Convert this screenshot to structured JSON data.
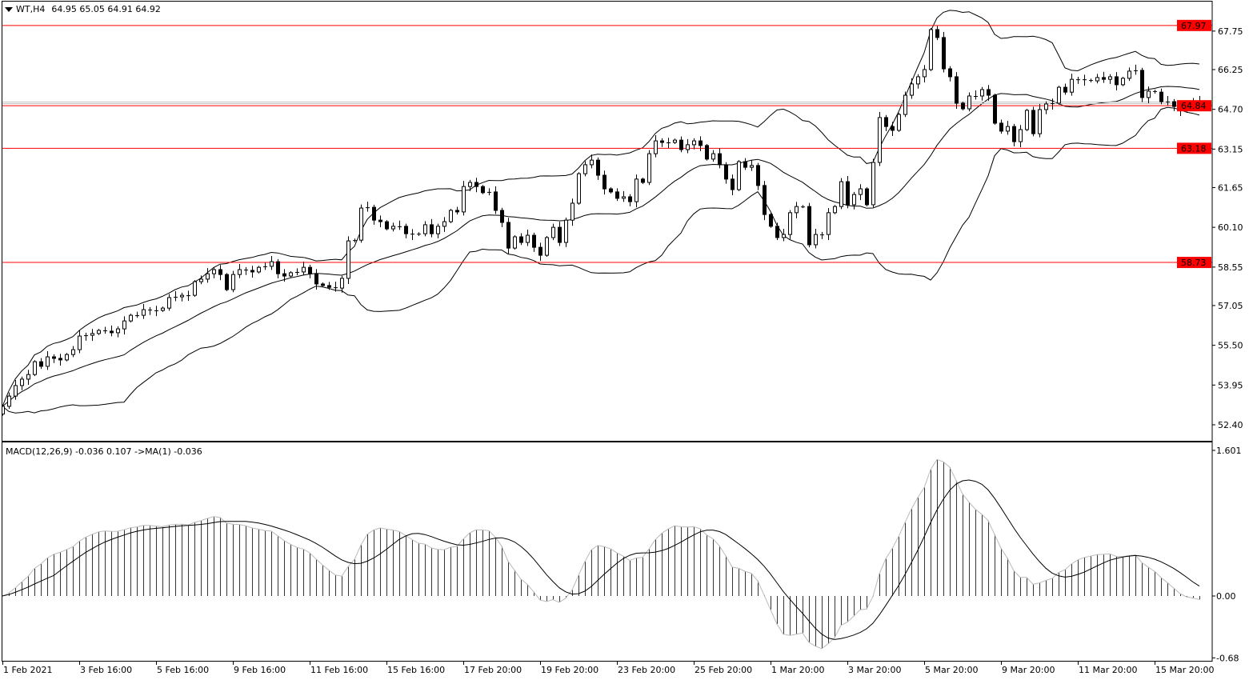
{
  "header": {
    "symbol": "WT,H4",
    "ohlc": "64.95 65.05 64.91 64.92"
  },
  "macd_header": {
    "label": "MACD(12,26,9) -0.036 0.107  ->MA(1) -0.036"
  },
  "colors": {
    "level_line": "#ff0000",
    "level_label_bg": "#ff0000",
    "bid_line": "#c0c0c0",
    "candle_up": "#ffffff",
    "candle_down": "#000000",
    "foreground": "#000000"
  },
  "chart_data": [
    {
      "type": "candlestick",
      "timeframe": "H4",
      "price_ticks": [
        "67.75",
        "66.25",
        "64.70",
        "63.15",
        "61.65",
        "60.10",
        "58.55",
        "57.05",
        "55.50",
        "53.95",
        "52.40"
      ],
      "ylim": [
        52.4,
        67.75
      ],
      "x_tick_labels": [
        "1 Feb 2021",
        "3 Feb 16:00",
        "5 Feb 16:00",
        "9 Feb 16:00",
        "11 Feb 16:00",
        "15 Feb 16:00",
        "17 Feb 20:00",
        "19 Feb 20:00",
        "23 Feb 20:00",
        "25 Feb 20:00",
        "1 Mar 20:00",
        "3 Mar 20:00",
        "5 Mar 20:00",
        "9 Mar 20:00",
        "11 Mar 20:00",
        "15 Mar 20:00"
      ],
      "x_tick_every_bars": 12,
      "indicator": "Bollinger Bands(20,2)",
      "levels": [
        {
          "price": 67.97,
          "label": "67.97"
        },
        {
          "price": 64.84,
          "label": "64.84"
        },
        {
          "price": 63.18,
          "label": "63.18"
        },
        {
          "price": 58.73,
          "label": "58.73"
        }
      ],
      "current_price": 64.92,
      "closes": [
        53.12,
        53.52,
        53.93,
        54.18,
        54.36,
        54.86,
        54.68,
        55.05,
        54.99,
        54.93,
        55.14,
        55.33,
        55.86,
        55.89,
        55.96,
        56.08,
        56.05,
        55.99,
        56.14,
        56.45,
        56.67,
        56.67,
        56.89,
        56.86,
        56.86,
        56.95,
        57.36,
        57.39,
        57.45,
        57.45,
        57.98,
        58.08,
        58.29,
        58.45,
        58.26,
        57.67,
        58.26,
        58.45,
        58.42,
        58.36,
        58.54,
        58.58,
        58.76,
        58.29,
        58.2,
        58.33,
        58.36,
        58.54,
        58.29,
        57.89,
        57.83,
        57.76,
        57.73,
        58.11,
        59.57,
        59.6,
        60.85,
        60.88,
        60.38,
        60.32,
        60.04,
        60.14,
        60.14,
        59.85,
        59.82,
        59.85,
        60.2,
        59.85,
        60.14,
        60.32,
        60.76,
        60.7,
        61.69,
        61.85,
        61.69,
        61.45,
        61.48,
        60.76,
        60.29,
        59.29,
        59.73,
        59.51,
        59.79,
        59.32,
        59.01,
        59.7,
        60.1,
        59.51,
        60.38,
        61.04,
        62.19,
        62.54,
        62.72,
        62.13,
        61.6,
        61.48,
        61.23,
        61.29,
        61.1,
        61.98,
        61.85,
        62.97,
        63.47,
        63.41,
        63.41,
        63.5,
        63.13,
        63.32,
        63.47,
        63.29,
        62.76,
        62.97,
        62.54,
        61.98,
        61.57,
        62.66,
        62.44,
        62.51,
        61.73,
        60.6,
        60.14,
        59.7,
        59.82,
        60.67,
        60.91,
        60.91,
        59.42,
        59.82,
        59.82,
        60.67,
        60.91,
        61.88,
        60.98,
        61.38,
        61.6,
        60.98,
        62.63,
        64.38,
        64.03,
        63.88,
        64.5,
        65.25,
        65.69,
        65.97,
        66.25,
        67.81,
        67.5,
        66.28,
        65.97,
        64.94,
        64.72,
        65.22,
        65.22,
        65.47,
        65.25,
        64.16,
        63.85,
        64.03,
        63.44,
        63.91,
        64.66,
        63.75,
        64.69,
        64.91,
        64.94,
        65.56,
        65.37,
        65.87,
        65.87,
        65.84,
        65.81,
        65.94,
        65.87,
        65.97,
        65.66,
        65.91,
        66.19,
        66.22,
        65.16,
        65.41,
        65.37,
        65.0,
        65.0,
        64.81,
        64.66,
        64.81,
        65.0,
        64.92
      ]
    },
    {
      "type": "macd",
      "params": "12,26,9",
      "ticks": [
        "1.601",
        "0.00",
        "-0.68"
      ],
      "ylim": [
        -0.68,
        1.601
      ],
      "last_macd": -0.036,
      "last_signal": 0.107
    }
  ]
}
